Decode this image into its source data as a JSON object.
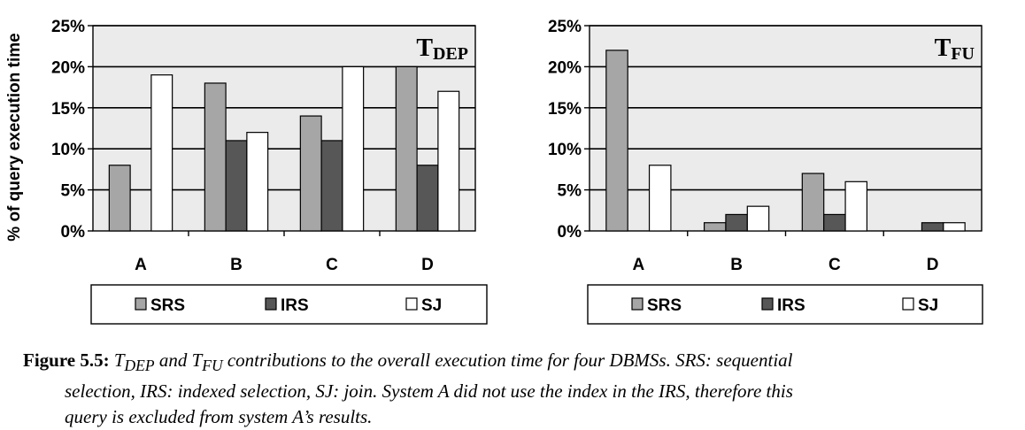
{
  "chart_data": [
    {
      "type": "bar",
      "title_main": "T",
      "title_sub": "DEP",
      "ylabel": "% of query execution time",
      "categories": [
        "A",
        "B",
        "C",
        "D"
      ],
      "y_ticks": [
        "0%",
        "5%",
        "10%",
        "15%",
        "20%",
        "25%"
      ],
      "ylim": [
        0,
        25
      ],
      "grid": true,
      "legend_position": "bottom",
      "series": [
        {
          "name": "SRS",
          "values": [
            8,
            18,
            14,
            20
          ],
          "color": "#a6a6a6"
        },
        {
          "name": "IRS",
          "values": [
            null,
            11,
            11,
            8
          ],
          "color": "#575757"
        },
        {
          "name": "SJ",
          "values": [
            19,
            12,
            20,
            17
          ],
          "color": "#ffffff"
        }
      ]
    },
    {
      "type": "bar",
      "title_main": "T",
      "title_sub": "FU",
      "ylabel": "",
      "categories": [
        "A",
        "B",
        "C",
        "D"
      ],
      "y_ticks": [
        "0%",
        "5%",
        "10%",
        "15%",
        "20%",
        "25%"
      ],
      "ylim": [
        0,
        25
      ],
      "grid": true,
      "legend_position": "bottom",
      "series": [
        {
          "name": "SRS",
          "values": [
            22,
            1,
            7,
            0
          ],
          "color": "#a6a6a6"
        },
        {
          "name": "IRS",
          "values": [
            null,
            2,
            2,
            1
          ],
          "color": "#575757"
        },
        {
          "name": "SJ",
          "values": [
            8,
            3,
            6,
            1
          ],
          "color": "#ffffff"
        }
      ]
    }
  ],
  "caption": {
    "lead": "Figure 5.5:",
    "line1": "T",
    "sub1": "DEP",
    "mid": " and T",
    "sub2": "FU",
    "rest1": " contributions to the overall execution time for four DBMSs. SRS: sequential",
    "line2": "selection, IRS: indexed selection, SJ: join. System A did not use the index in the IRS, therefore this",
    "line3": "query is excluded from system A’s results."
  }
}
